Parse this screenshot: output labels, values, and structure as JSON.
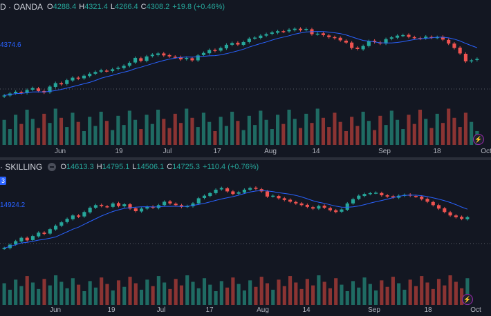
{
  "panes": [
    {
      "symbol": "D · OANDA",
      "ohlc": {
        "o_label": "O",
        "o": "4288.4",
        "h_label": "H",
        "h": "4321.4",
        "l_label": "L",
        "l": "4266.4",
        "c_label": "C",
        "c": "4308.2"
      },
      "change": "+19.8 (+0.46%)",
      "ma_label": "4374.6",
      "x_ticks": [
        "Jun",
        "19",
        "Jul",
        "17",
        "Aug",
        "14",
        "Sep",
        "18",
        "Oct"
      ]
    },
    {
      "symbol": "· SKILLING",
      "ohlc": {
        "o_label": "O",
        "o": "14613.3",
        "h_label": "H",
        "h": "14795.1",
        "l_label": "L",
        "l": "14506.1",
        "c_label": "C",
        "c": "14725.3"
      },
      "change": "+110.4 (+0.76%)",
      "price_tag": "3",
      "ma_label": "14924.2",
      "x_ticks": [
        "Jun",
        "19",
        "Jul",
        "17",
        "Aug",
        "14",
        "Sep",
        "18",
        "Oct"
      ]
    }
  ],
  "chart_data": [
    {
      "type": "candlestick",
      "series_close": [
        4160,
        4168,
        4175,
        4170,
        4182,
        4190,
        4178,
        4172,
        4196,
        4210,
        4205,
        4222,
        4232,
        4228,
        4240,
        4248,
        4255,
        4262,
        4259,
        4266,
        4272,
        4280,
        4292,
        4312,
        4300,
        4318,
        4325,
        4330,
        4322,
        4318,
        4315,
        4306,
        4312,
        4302,
        4322,
        4332,
        4344,
        4340,
        4352,
        4365,
        4372,
        4366,
        4376,
        4390,
        4394,
        4402,
        4408,
        4415,
        4420,
        4418,
        4426,
        4430,
        4424,
        4429,
        4408,
        4410,
        4404,
        4396,
        4392,
        4383,
        4374,
        4352,
        4348,
        4360,
        4380,
        4376,
        4370,
        4388,
        4395,
        4402,
        4404,
        4397,
        4392,
        4390,
        4398,
        4394,
        4396,
        4386,
        4370,
        4352,
        4330,
        4298,
        4302,
        4308
      ],
      "up_color": "#26a69a",
      "down_color": "#ef5350",
      "ma_color": "#2962ff"
    },
    {
      "type": "candlestick",
      "series_close": [
        14380,
        14420,
        14460,
        14500,
        14470,
        14520,
        14560,
        14545,
        14600,
        14640,
        14680,
        14720,
        14760,
        14745,
        14800,
        14850,
        14880,
        14870,
        14860,
        14900,
        14870,
        14890,
        14840,
        14810,
        14840,
        14860,
        14850,
        14880,
        14920,
        14900,
        14880,
        14860,
        14870,
        14900,
        14960,
        14990,
        15020,
        15060,
        15080,
        15040,
        15010,
        15030,
        15060,
        15080,
        15070,
        15040,
        14980,
        14990,
        14960,
        14940,
        14920,
        14900,
        14880,
        14860,
        14840,
        14870,
        14850,
        14820,
        14800,
        14830,
        14900,
        14950,
        14990,
        15010,
        15020,
        15025,
        14995,
        14980,
        14970,
        14990,
        15000,
        14990,
        14980,
        14950,
        14920,
        14880,
        14840,
        14800,
        14760,
        14740,
        14720,
        14740
      ],
      "up_color": "#26a69a",
      "down_color": "#ef5350",
      "ma_color": "#2962ff"
    }
  ]
}
